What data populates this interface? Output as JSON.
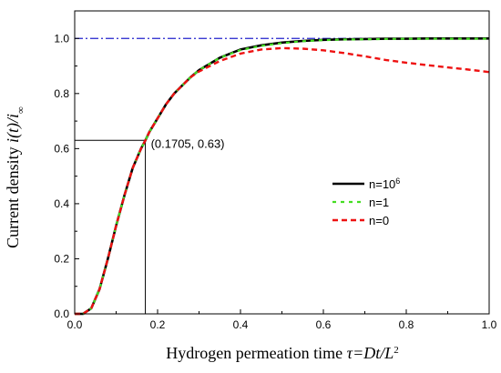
{
  "chart_data": {
    "type": "line",
    "xlabel": {
      "text": "Hydrogen permeation time ",
      "italic": "τ=Dt/L",
      "sup": "2"
    },
    "ylabel": {
      "pre": "Current density ",
      "italic": "i(t)/i",
      "sub": "∞"
    },
    "xlim": [
      0.0,
      1.0
    ],
    "ylim": [
      0.0,
      1.1
    ],
    "xticks": [
      "0.0",
      "0.2",
      "0.4",
      "0.6",
      "0.8",
      "1.0"
    ],
    "yticks": [
      "0.0",
      "0.2",
      "0.4",
      "0.6",
      "0.8",
      "1.0"
    ],
    "grid": false,
    "legend_position": "center-right",
    "x": [
      0.0,
      0.02,
      0.04,
      0.06,
      0.08,
      0.1,
      0.12,
      0.14,
      0.16,
      0.1705,
      0.18,
      0.2,
      0.22,
      0.24,
      0.26,
      0.28,
      0.3,
      0.35,
      0.4,
      0.45,
      0.5,
      0.55,
      0.6,
      0.65,
      0.7,
      0.75,
      0.8,
      0.85,
      0.9,
      0.95,
      1.0
    ],
    "series": [
      {
        "name": "n=10",
        "sup": "6",
        "color": "#000000",
        "dash": "none",
        "width": 2.6,
        "values": [
          0.0,
          0.0,
          0.02,
          0.09,
          0.2,
          0.32,
          0.43,
          0.53,
          0.6,
          0.63,
          0.66,
          0.71,
          0.76,
          0.8,
          0.83,
          0.86,
          0.885,
          0.93,
          0.96,
          0.975,
          0.985,
          0.991,
          0.995,
          0.997,
          0.998,
          0.999,
          0.999,
          1.0,
          1.0,
          1.0,
          1.0
        ]
      },
      {
        "name": "n=1",
        "sup": "",
        "color": "#44dd22",
        "dash": "4,5",
        "width": 2.2,
        "values": [
          0.0,
          0.0,
          0.02,
          0.09,
          0.2,
          0.32,
          0.43,
          0.53,
          0.6,
          0.63,
          0.66,
          0.71,
          0.76,
          0.8,
          0.83,
          0.86,
          0.885,
          0.93,
          0.958,
          0.973,
          0.983,
          0.99,
          0.994,
          0.996,
          0.997,
          0.998,
          0.999,
          0.999,
          0.999,
          0.999,
          0.999
        ]
      },
      {
        "name": "n=0",
        "sup": "",
        "color": "#ee1111",
        "dash": "6,4",
        "width": 2.4,
        "values": [
          0.0,
          0.0,
          0.02,
          0.09,
          0.2,
          0.32,
          0.43,
          0.53,
          0.6,
          0.63,
          0.66,
          0.71,
          0.76,
          0.8,
          0.83,
          0.86,
          0.88,
          0.918,
          0.945,
          0.96,
          0.965,
          0.963,
          0.957,
          0.947,
          0.935,
          0.922,
          0.912,
          0.903,
          0.895,
          0.887,
          0.878
        ]
      }
    ],
    "reference_line": {
      "y": 1.0,
      "color": "#2222cc",
      "dash": "9,3,2,3"
    },
    "annotation": {
      "text": "(0.1705, 0.63)",
      "x": 0.1705,
      "y": 0.63
    }
  }
}
